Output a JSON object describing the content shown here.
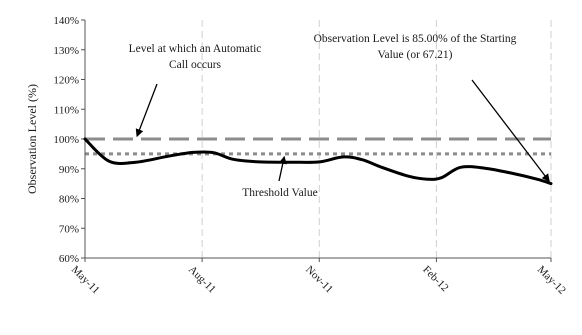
{
  "chart_data": {
    "type": "line",
    "title": "",
    "xlabel": "",
    "ylabel": "Observation Level (%)",
    "ylim": [
      60,
      140
    ],
    "yticks": [
      "60%",
      "70%",
      "80%",
      "90%",
      "100%",
      "110%",
      "120%",
      "130%",
      "140%"
    ],
    "y_tick_values": [
      60,
      70,
      80,
      90,
      100,
      110,
      120,
      130,
      140
    ],
    "x_tick_labels": [
      "May-11",
      "Aug-11",
      "Nov-11",
      "Feb-12",
      "May-12"
    ],
    "grid": "vertical dashed at each x tick",
    "series": [
      {
        "name": "",
        "color": "#000000",
        "x": [
          "2011-05-01",
          "2011-05-20",
          "2011-06-10",
          "2011-07-05",
          "2011-07-25",
          "2011-08-10",
          "2011-08-25",
          "2011-09-15",
          "2011-10-10",
          "2011-11-01",
          "2011-11-20",
          "2011-12-05",
          "2011-12-20",
          "2012-01-10",
          "2012-01-25",
          "2012-02-05",
          "2012-02-20",
          "2012-03-10",
          "2012-03-30",
          "2012-04-20",
          "2012-05-01"
        ],
        "values": [
          100,
          92.5,
          92.2,
          94.2,
          95.5,
          95.4,
          93.2,
          92.3,
          92.2,
          92.3,
          94,
          93,
          90.5,
          87.5,
          86.5,
          87,
          90.5,
          90.2,
          88.6,
          86.5,
          85
        ]
      }
    ],
    "reference_lines": [
      {
        "y": 100,
        "style": "long-dash",
        "color": "#8c8c8c"
      },
      {
        "y": 95,
        "style": "short-dash",
        "color": "#8c8c8c"
      }
    ],
    "annotations": [
      {
        "lines": [
          "Level at which an Automatic",
          "Call occurs"
        ],
        "arrow_target": {
          "x": "2011-06-10",
          "y": 100
        }
      },
      {
        "lines": [
          "Observation Level is 85.00% of the Starting",
          "Value (or 67.21)"
        ],
        "arrow_target": {
          "x": "2012-05-01",
          "y": 85
        }
      },
      {
        "lines": [
          "Threshold Value"
        ],
        "arrow_target": {
          "x": "2011-10-05",
          "y": 95
        }
      }
    ]
  }
}
